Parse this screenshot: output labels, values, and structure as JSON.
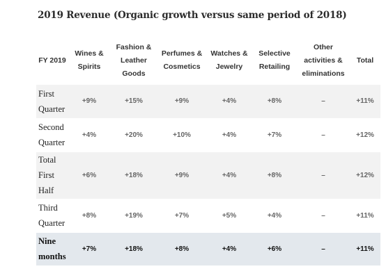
{
  "title": "2019 Revenue (Organic growth versus same period of 2018)",
  "columns": [
    "FY 2019",
    "Wines & Spirits",
    "Fashion & Leather Goods",
    "Perfumes & Cosmetics",
    "Watches & Jewelry",
    "Selective Retailing",
    "Other activities & eliminations",
    "Total"
  ],
  "rows": [
    {
      "label": "First Quarter",
      "values": [
        "+9%",
        "+15%",
        "+9%",
        "+4%",
        "+8%",
        "–",
        "+11%"
      ]
    },
    {
      "label": "Second Quarter",
      "values": [
        "+4%",
        "+20%",
        "+10%",
        "+4%",
        "+7%",
        "–",
        "+12%"
      ]
    },
    {
      "label": "Total First Half",
      "values": [
        "+6%",
        "+18%",
        "+9%",
        "+4%",
        "+8%",
        "–",
        "+12%"
      ]
    },
    {
      "label": "Third Quarter",
      "values": [
        "+8%",
        "+19%",
        "+7%",
        "+5%",
        "+4%",
        "–",
        "+11%"
      ]
    },
    {
      "label": "Nine months",
      "values": [
        "+7%",
        "+18%",
        "+8%",
        "+4%",
        "+6%",
        "–",
        "+11%"
      ]
    }
  ],
  "colors": {
    "shaded_row": "#f2f2f2",
    "total_row": "#e3e8ed"
  }
}
